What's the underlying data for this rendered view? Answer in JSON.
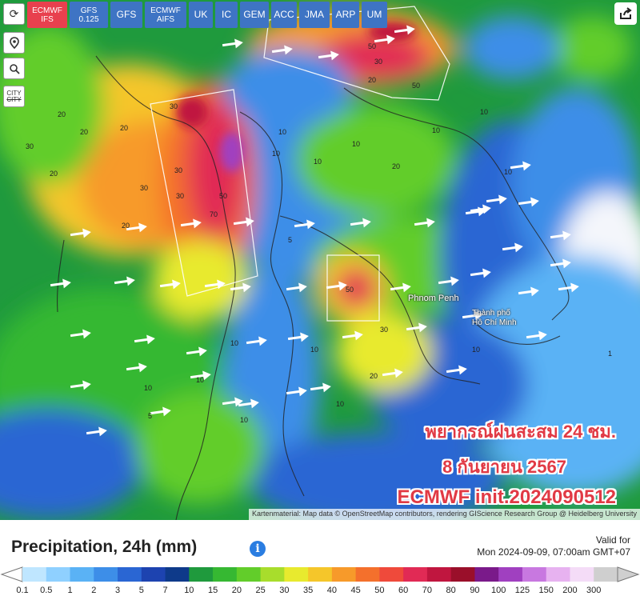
{
  "tabs": [
    {
      "label_line1": "ECMWF",
      "label_line2": "IFS",
      "active": true
    },
    {
      "label_line1": "GFS",
      "label_line2": "0.125",
      "active": false
    },
    {
      "label_line1": "GFS",
      "label_line2": "",
      "active": false
    },
    {
      "label_line1": "ECMWF",
      "label_line2": "AIFS",
      "active": false
    },
    {
      "label_line1": "UK",
      "label_line2": "",
      "active": false
    },
    {
      "label_line1": "IC",
      "label_line2": "",
      "active": false
    },
    {
      "label_line1": "GEM",
      "label_line2": "",
      "active": false
    },
    {
      "label_line1": "ACC",
      "label_line2": "",
      "active": false
    },
    {
      "label_line1": "JMA",
      "label_line2": "",
      "active": false
    },
    {
      "label_line1": "ARP",
      "label_line2": "",
      "active": false
    },
    {
      "label_line1": "UM",
      "label_line2": "",
      "active": false
    }
  ],
  "side_buttons": {
    "refresh_icon": "refresh-icon",
    "location_icon": "location-pin-icon",
    "zoom_icon": "zoom-icon",
    "city_line1": "CITY",
    "city_line2": "CITY"
  },
  "share_icon": "share-icon",
  "places": {
    "phnom_penh": "Phnom Penh",
    "hcm_line1": "Thành phố",
    "hcm_line2": "Hồ Chí Minh"
  },
  "contour_labels": [
    "30",
    "20",
    "30",
    "20",
    "50",
    "70",
    "30",
    "30",
    "20",
    "20",
    "10",
    "10",
    "20",
    "50",
    "50",
    "30",
    "10",
    "10",
    "20",
    "30",
    "10",
    "10",
    "50",
    "10",
    "20",
    "10",
    "10",
    "5",
    "10",
    "1",
    "10",
    "20",
    "30",
    "10",
    "10",
    "10",
    "5"
  ],
  "overlay": {
    "line1": "พยากรณ์ฝนสะสม 24 ชม.",
    "line2": "8 กันยายน 2567",
    "line3": "ECMWF init.2024090512"
  },
  "attribution": "Kartenmaterial: Map data © OpenStreetMap contributors, rendering GIScience Research Group @ Heidelberg University",
  "legend": {
    "title": "Precipitation, 24h (mm)",
    "info_icon": "i",
    "valid_label": "Valid for",
    "valid_time": "Mon 2024-09-09, 07:00am GMT+07",
    "ticks": [
      "0.1",
      "0.5",
      "1",
      "2",
      "3",
      "5",
      "7",
      "10",
      "15",
      "20",
      "25",
      "30",
      "35",
      "40",
      "45",
      "50",
      "60",
      "70",
      "80",
      "90",
      "100",
      "125",
      "150",
      "200",
      "300"
    ],
    "colors": [
      "#bfe6ff",
      "#8fd0ff",
      "#5ab2f5",
      "#3d8ee8",
      "#2a66d3",
      "#1d43b0",
      "#0e3a8a",
      "#1f9a3d",
      "#36b832",
      "#62cd2a",
      "#a8dd2c",
      "#e8ea2e",
      "#f5c62a",
      "#f79a2a",
      "#f4702c",
      "#ef4a3b",
      "#e12a55",
      "#c0163f",
      "#9a0f2a",
      "#7a1a8a",
      "#a040c0",
      "#c878e0",
      "#e7b2f0",
      "#f4dcf7",
      "#cfcfcf"
    ]
  },
  "colors": {
    "tab_active": "#e8404e",
    "tab": "#3e74c4",
    "overlay_text": "#e13a45"
  }
}
